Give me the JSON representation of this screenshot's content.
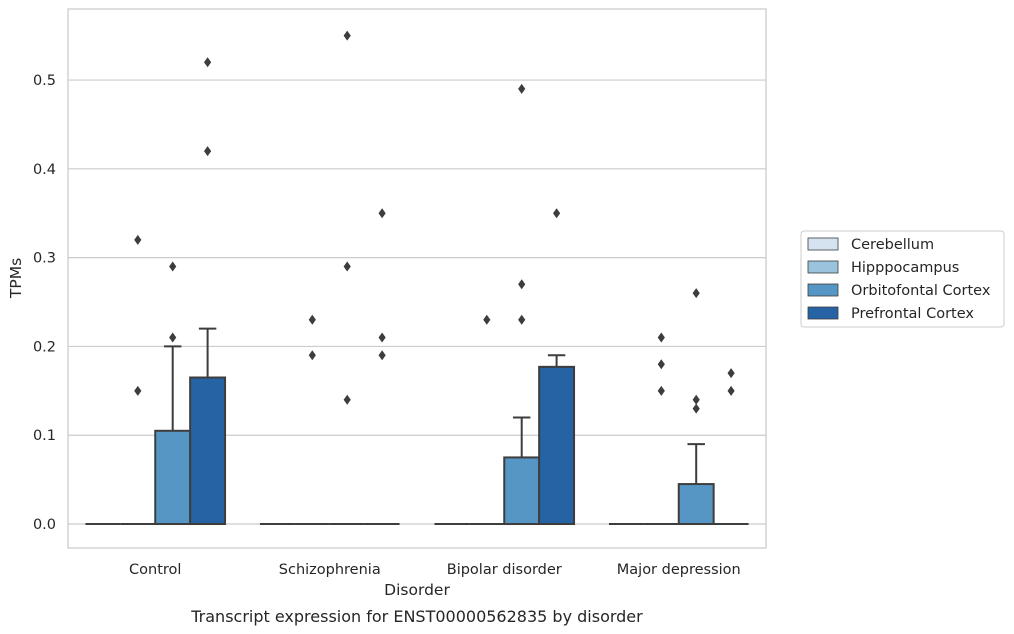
{
  "chart_data": {
    "type": "box",
    "caption": "Transcript expression for ENST00000562835 by disorder",
    "xlabel": "Disorder",
    "ylabel": "TPMs",
    "ylim": [
      -0.027,
      0.58
    ],
    "yticks": [
      "0.0",
      "0.1",
      "0.2",
      "0.3",
      "0.4",
      "0.5"
    ],
    "grid": "horizontal",
    "legend_position": "right",
    "categories": [
      "Control",
      "Schizophrenia",
      "Bipolar disorder",
      "Major depression"
    ],
    "series": [
      {
        "name": "Cerebellum",
        "color": "#d5e3f1",
        "boxes": [
          {
            "q1": 0,
            "median": 0,
            "q3": 0,
            "whisker_low": 0,
            "whisker_high": 0,
            "outliers": []
          },
          {
            "q1": 0,
            "median": 0,
            "q3": 0,
            "whisker_low": 0,
            "whisker_high": 0,
            "outliers": []
          },
          {
            "q1": 0,
            "median": 0,
            "q3": 0,
            "whisker_low": 0,
            "whisker_high": 0,
            "outliers": []
          },
          {
            "q1": 0,
            "median": 0,
            "q3": 0,
            "whisker_low": 0,
            "whisker_high": 0,
            "outliers": []
          }
        ]
      },
      {
        "name": "Hipppocampus",
        "color": "#9ac4dd",
        "boxes": [
          {
            "q1": 0,
            "median": 0,
            "q3": 0,
            "whisker_low": 0,
            "whisker_high": 0,
            "outliers": [
              0.32,
              0.15
            ]
          },
          {
            "q1": 0,
            "median": 0,
            "q3": 0,
            "whisker_low": 0,
            "whisker_high": 0,
            "outliers": [
              0.23,
              0.19
            ]
          },
          {
            "q1": 0,
            "median": 0,
            "q3": 0,
            "whisker_low": 0,
            "whisker_high": 0,
            "outliers": [
              0.23
            ]
          },
          {
            "q1": 0,
            "median": 0,
            "q3": 0,
            "whisker_low": 0,
            "whisker_high": 0,
            "outliers": [
              0.21,
              0.18,
              0.15
            ]
          }
        ]
      },
      {
        "name": "Orbitofontal Cortex",
        "color": "#5696c5",
        "boxes": [
          {
            "q1": 0,
            "median": 0,
            "q3": 0.105,
            "whisker_low": 0,
            "whisker_high": 0.2,
            "outliers": [
              0.29,
              0.21
            ]
          },
          {
            "q1": 0,
            "median": 0,
            "q3": 0,
            "whisker_low": 0,
            "whisker_high": 0,
            "outliers": [
              0.55,
              0.29,
              0.14
            ]
          },
          {
            "q1": 0,
            "median": 0,
            "q3": 0.075,
            "whisker_low": 0,
            "whisker_high": 0.12,
            "outliers": [
              0.49,
              0.27,
              0.23
            ]
          },
          {
            "q1": 0,
            "median": 0,
            "q3": 0.045,
            "whisker_low": 0,
            "whisker_high": 0.09,
            "outliers": [
              0.26,
              0.14,
              0.13
            ]
          }
        ]
      },
      {
        "name": "Prefrontal Cortex",
        "color": "#2563a5",
        "boxes": [
          {
            "q1": 0,
            "median": 0,
            "q3": 0.165,
            "whisker_low": 0,
            "whisker_high": 0.22,
            "outliers": [
              0.52,
              0.42
            ]
          },
          {
            "q1": 0,
            "median": 0,
            "q3": 0,
            "whisker_low": 0,
            "whisker_high": 0,
            "outliers": [
              0.35,
              0.21,
              0.19
            ]
          },
          {
            "q1": 0,
            "median": 0,
            "q3": 0.177,
            "whisker_low": 0,
            "whisker_high": 0.19,
            "outliers": [
              0.35
            ]
          },
          {
            "q1": 0,
            "median": 0,
            "q3": 0,
            "whisker_low": 0,
            "whisker_high": 0,
            "outliers": [
              0.17,
              0.15
            ]
          }
        ]
      }
    ]
  }
}
